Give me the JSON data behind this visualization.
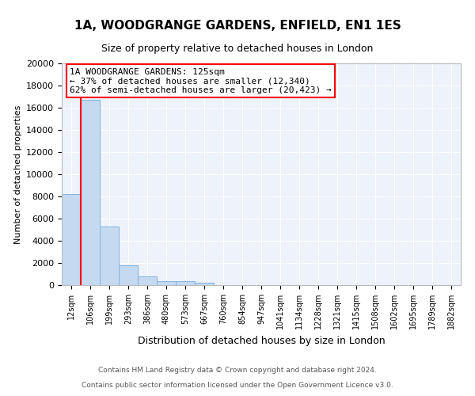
{
  "title1": "1A, WOODGRANGE GARDENS, ENFIELD, EN1 1ES",
  "title2": "Size of property relative to detached houses in London",
  "xlabel": "Distribution of detached houses by size in London",
  "ylabel": "Number of detached properties",
  "annotation_line1": "1A WOODGRANGE GARDENS: 125sqm",
  "annotation_line2": "← 37% of detached houses are smaller (12,340)",
  "annotation_line3": "62% of semi-detached houses are larger (20,423) →",
  "footer1": "Contains HM Land Registry data © Crown copyright and database right 2024.",
  "footer2": "Contains public sector information licensed under the Open Government Licence v3.0.",
  "categories": [
    "12sqm",
    "106sqm",
    "199sqm",
    "293sqm",
    "386sqm",
    "480sqm",
    "573sqm",
    "667sqm",
    "760sqm",
    "854sqm",
    "947sqm",
    "1041sqm",
    "1134sqm",
    "1228sqm",
    "1321sqm",
    "1415sqm",
    "1508sqm",
    "1602sqm",
    "1695sqm",
    "1789sqm",
    "1882sqm"
  ],
  "values": [
    8200,
    16700,
    5300,
    1800,
    800,
    350,
    350,
    200,
    0,
    0,
    0,
    0,
    0,
    0,
    0,
    0,
    0,
    0,
    0,
    0,
    0
  ],
  "bar_color": "#c5d9f0",
  "bar_edge_color": "#7fb3e0",
  "red_line_x": 0.5,
  "plot_bg_color": "#eef2fa",
  "ylim": [
    0,
    20000
  ],
  "yticks": [
    0,
    2000,
    4000,
    6000,
    8000,
    10000,
    12000,
    14000,
    16000,
    18000,
    20000
  ]
}
